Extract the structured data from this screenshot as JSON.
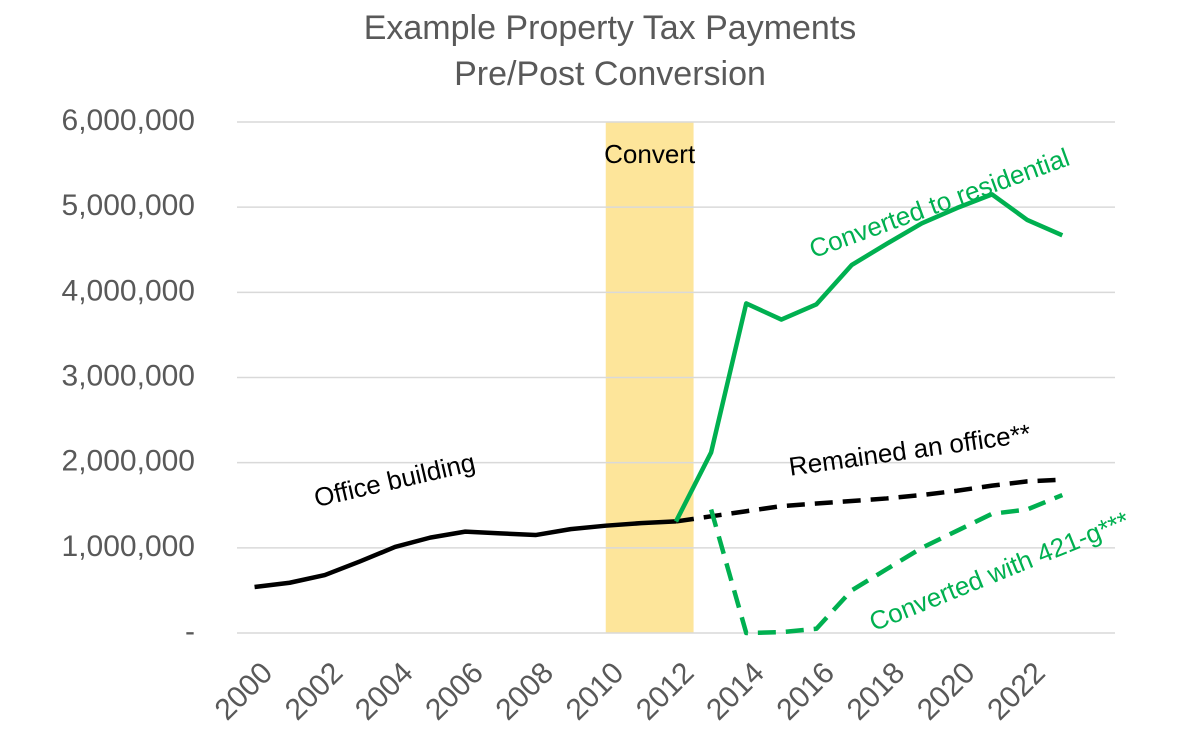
{
  "chart_data": {
    "type": "line",
    "title": [
      "Example  Property Tax Payments",
      "Pre/Post Conversion"
    ],
    "x": [
      2000,
      2001,
      2002,
      2003,
      2004,
      2005,
      2006,
      2007,
      2008,
      2009,
      2010,
      2011,
      2012,
      2013,
      2014,
      2015,
      2016,
      2017,
      2018,
      2019,
      2020,
      2021,
      2022,
      2023
    ],
    "xlim": [
      1999.5,
      2024.5
    ],
    "xticks": [
      2000,
      2002,
      2004,
      2006,
      2008,
      2010,
      2012,
      2014,
      2016,
      2018,
      2020,
      2022
    ],
    "ylim": [
      0,
      6000000
    ],
    "yticks": [
      {
        "value": 0,
        "label": "-"
      },
      {
        "value": 1000000,
        "label": "1,000,000"
      },
      {
        "value": 2000000,
        "label": "2,000,000"
      },
      {
        "value": 3000000,
        "label": "3,000,000"
      },
      {
        "value": 4000000,
        "label": "4,000,000"
      },
      {
        "value": 5000000,
        "label": "5,000,000"
      },
      {
        "value": 6000000,
        "label": "6,000,000"
      }
    ],
    "grid": true,
    "shaded_region": {
      "label": "Convert",
      "x": [
        2010,
        2012.5
      ],
      "color": "#fde59a"
    },
    "series": [
      {
        "name": "Office building",
        "color": "#000000",
        "dash": false,
        "values": [
          540000,
          590000,
          680000,
          840000,
          1010000,
          1120000,
          1190000,
          1170000,
          1150000,
          1220000,
          1260000,
          1290000,
          1310000,
          null,
          null,
          null,
          null,
          null,
          null,
          null,
          null,
          null,
          null,
          null
        ]
      },
      {
        "name": "Remained an office**",
        "color": "#000000",
        "dash": true,
        "values": [
          null,
          null,
          null,
          null,
          null,
          null,
          null,
          null,
          null,
          null,
          null,
          null,
          1310000,
          1370000,
          1430000,
          1490000,
          1520000,
          1550000,
          1580000,
          1620000,
          1670000,
          1730000,
          1780000,
          1800000
        ]
      },
      {
        "name": "Converted to residential",
        "color": "#00b050",
        "dash": false,
        "values": [
          null,
          null,
          null,
          null,
          null,
          null,
          null,
          null,
          null,
          null,
          null,
          null,
          1310000,
          2120000,
          3870000,
          3680000,
          3860000,
          4320000,
          4570000,
          4810000,
          4990000,
          5150000,
          4850000,
          4670000
        ]
      },
      {
        "name": "Converted with 421-g***",
        "color": "#00b050",
        "dash": true,
        "values": [
          null,
          null,
          null,
          null,
          null,
          null,
          null,
          null,
          null,
          null,
          null,
          null,
          null,
          1450000,
          0,
          10000,
          50000,
          500000,
          750000,
          1000000,
          1200000,
          1400000,
          1450000,
          1620000
        ]
      }
    ]
  }
}
